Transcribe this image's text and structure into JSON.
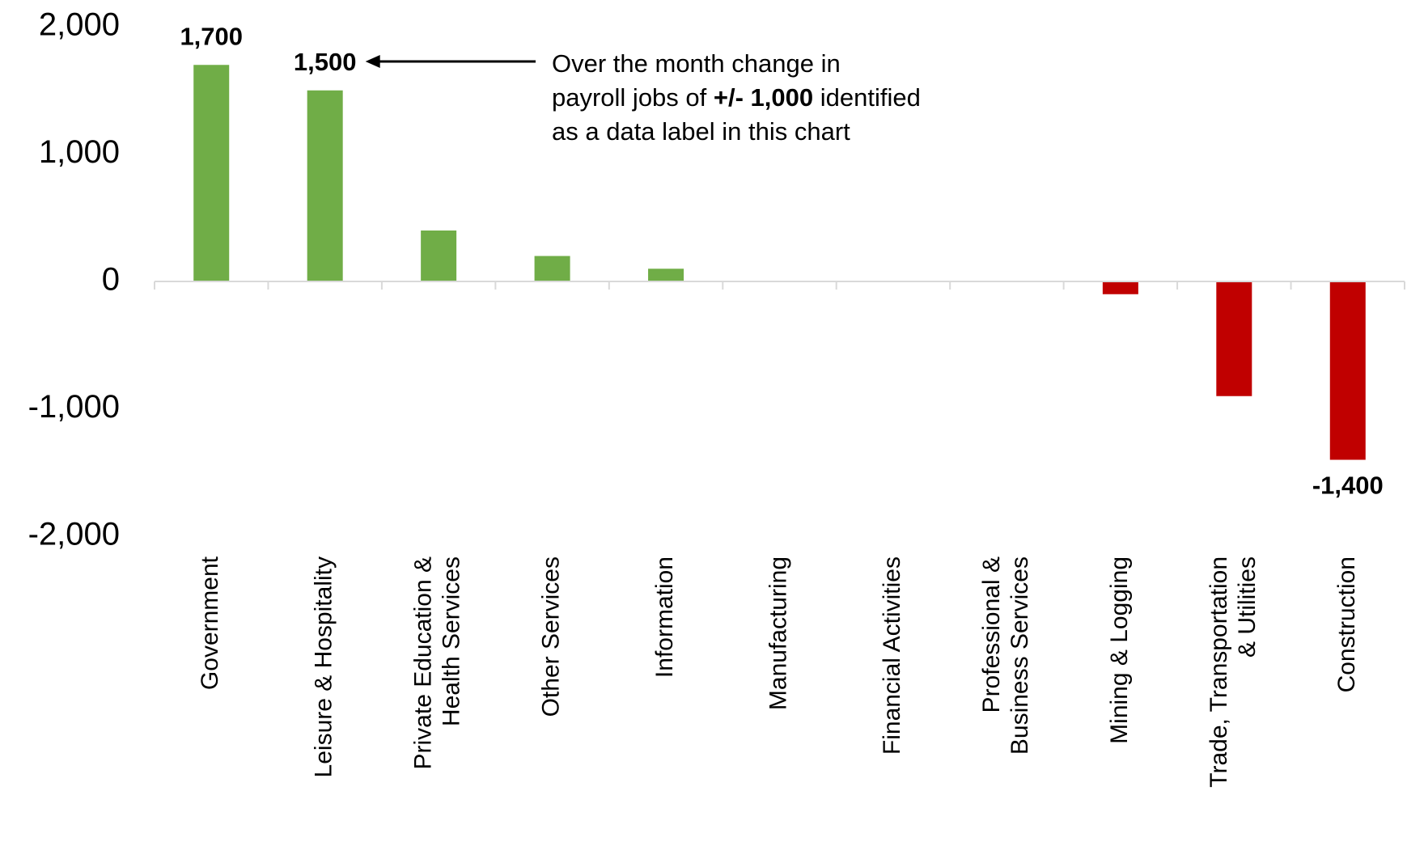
{
  "chart_data": {
    "type": "bar",
    "categories": [
      "Government",
      "Leisure & Hospitality",
      "Private Education &\nHealth Services",
      "Other Services",
      "Information",
      "Manufacturing",
      "Financial Activities",
      "Professional &\nBusiness Services",
      "Mining & Logging",
      "Trade, Transportation\n& Utilities",
      "Construction"
    ],
    "values": [
      1700,
      1500,
      400,
      200,
      100,
      0,
      0,
      0,
      -100,
      -900,
      -1400
    ],
    "value_labels": [
      "1,700",
      "1,500",
      null,
      null,
      null,
      null,
      null,
      null,
      null,
      null,
      "-1,400"
    ],
    "positive_color": "#70ad47",
    "negative_color": "#c00000",
    "ylim": [
      -2000,
      2000
    ],
    "yticks": [
      {
        "value": 2000,
        "label": "2,000"
      },
      {
        "value": 1000,
        "label": "1,000"
      },
      0,
      {
        "value": -1000,
        "label": "-1,000"
      },
      {
        "value": -2000,
        "label": "-2,000"
      }
    ],
    "grid": false,
    "annotation": {
      "lines": [
        [
          "Over the month change in"
        ],
        [
          "payroll jobs of ",
          "+/- 1,000",
          " identified"
        ],
        [
          "as a data label in this chart"
        ]
      ],
      "bold_segment": [
        1,
        1
      ]
    }
  }
}
